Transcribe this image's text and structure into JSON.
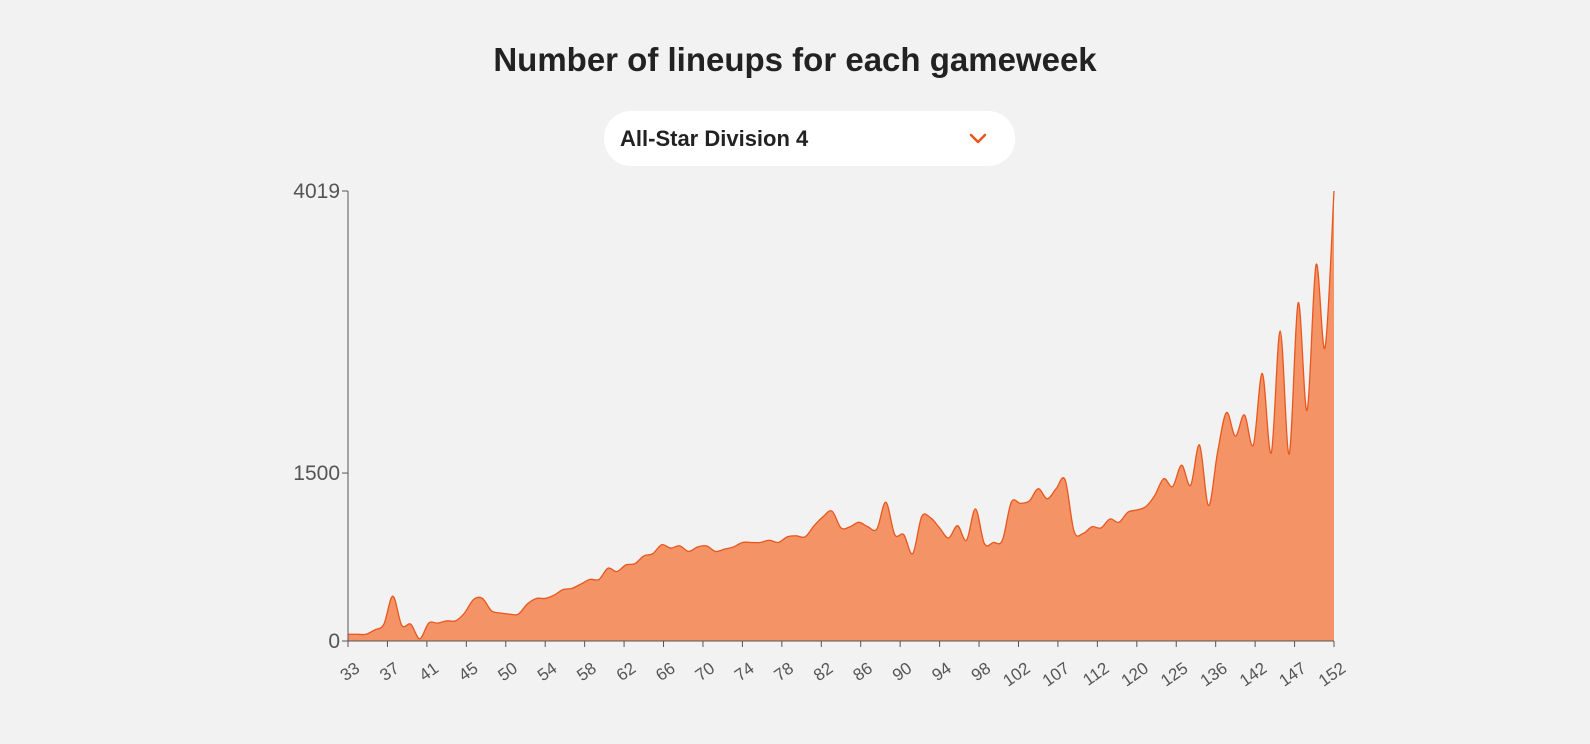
{
  "header": {
    "title": "Number of lineups for each gameweek"
  },
  "filter": {
    "selected": "All-Star Division 4",
    "icon": "chevron-down-icon"
  },
  "colors": {
    "area_fill": "#f39366",
    "area_stroke": "#e8571e",
    "accent": "#e8571e",
    "axis": "#555555"
  },
  "chart_data": {
    "type": "area",
    "title": "Number of lineups for each gameweek",
    "xlabel": "",
    "ylabel": "",
    "ylim": [
      0,
      4019
    ],
    "y_ticks": [
      0,
      1500,
      4019
    ],
    "x_tick_labels": [
      "33",
      "37",
      "41",
      "45",
      "50",
      "54",
      "58",
      "62",
      "66",
      "70",
      "74",
      "78",
      "82",
      "86",
      "90",
      "94",
      "98",
      "102",
      "107",
      "112",
      "120",
      "125",
      "136",
      "142",
      "147",
      "152"
    ],
    "grid": false,
    "series": [
      {
        "values": [
          60,
          60,
          60,
          100,
          150,
          400,
          140,
          150,
          20,
          160,
          160,
          180,
          180,
          250,
          370,
          380,
          270,
          250,
          240,
          240,
          330,
          380,
          380,
          410,
          460,
          470,
          510,
          550,
          550,
          650,
          620,
          680,
          690,
          760,
          780,
          860,
          830,
          850,
          800,
          840,
          850,
          800,
          820,
          840,
          880,
          880,
          880,
          900,
          880,
          930,
          940,
          930,
          1030,
          1110,
          1160,
          1010,
          1020,
          1060,
          1020,
          1000,
          1240,
          950,
          950,
          780,
          1110,
          1100,
          1010,
          920,
          1030,
          900,
          1180,
          870,
          880,
          900,
          1240,
          1230,
          1250,
          1360,
          1270,
          1360,
          1440,
          980,
          960,
          1020,
          1010,
          1090,
          1060,
          1150,
          1170,
          1200,
          1300,
          1450,
          1380,
          1570,
          1390,
          1750,
          1210,
          1680,
          2040,
          1830,
          2020,
          1750,
          2390,
          1680,
          2770,
          1670,
          3020,
          2060,
          3360,
          2620,
          4019
        ]
      }
    ]
  }
}
